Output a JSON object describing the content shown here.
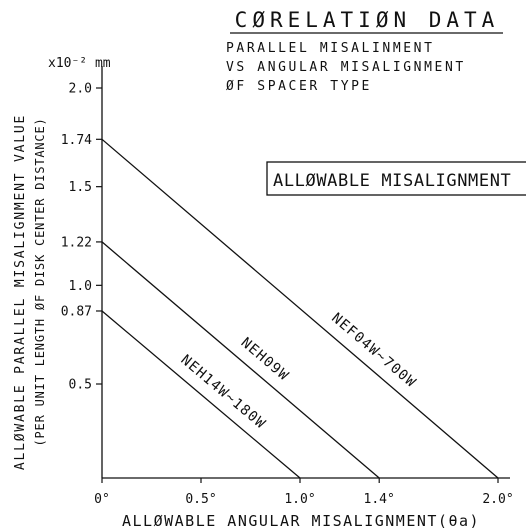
{
  "header": {
    "title": "CØRELATIØN DATA",
    "subtitle_lines": [
      "PARALLEL MISALINMENT",
      "VS ANGULAR MISALIGNMENT",
      "ØF SPACER TYPE"
    ]
  },
  "chart_data": {
    "type": "line",
    "title": "CØRELATIØN DATA",
    "xlabel": "ALLØWABLE ANGULAR MISALIGNMENT(θa)",
    "ylabel": "ALLØWABLE PARALLEL MISALIGNMENT VALUE",
    "ylabel_sub": "(PER UNIT LENGTH ØF DISK CENTER DISTANCE)",
    "y_unit_label": "x10⁻² mm",
    "xlim": [
      0,
      2.0
    ],
    "ylim": [
      0.3,
      2.1
    ],
    "x_ticks": [
      {
        "value": 0,
        "label": "0°"
      },
      {
        "value": 0.5,
        "label": "0.5°"
      },
      {
        "value": 1.0,
        "label": "1.0°"
      },
      {
        "value": 1.4,
        "label": "1.4°"
      },
      {
        "value": 2.0,
        "label": "2.0°"
      }
    ],
    "y_ticks": [
      {
        "value": 2.0,
        "label": "2.0"
      },
      {
        "value": 1.74,
        "label": "1.74"
      },
      {
        "value": 1.5,
        "label": "1.5"
      },
      {
        "value": 1.22,
        "label": "1.22"
      },
      {
        "value": 1.0,
        "label": "1.0"
      },
      {
        "value": 0.87,
        "label": "0.87"
      },
      {
        "value": 0.5,
        "label": "0.5"
      }
    ],
    "box_label": "ALLØWABLE MISALIGNMENT",
    "series": [
      {
        "name": "NEF04W~700W",
        "x": [
          0,
          2.0
        ],
        "y": [
          1.74,
          0
        ]
      },
      {
        "name": "NEH09W",
        "x": [
          0,
          1.4
        ],
        "y": [
          1.22,
          0
        ]
      },
      {
        "name": "NEH14W~180W",
        "x": [
          0,
          1.0
        ],
        "y": [
          0.87,
          0
        ]
      }
    ],
    "grid": false,
    "legend": "none"
  }
}
